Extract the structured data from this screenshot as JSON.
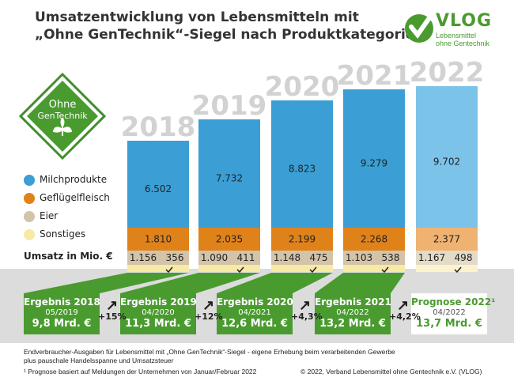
{
  "header": {
    "title_line1": "Umsatzentwicklung von Lebensmitteln mit",
    "title_line2": "„Ohne GenTechnik“-Siegel nach Produktkategorien"
  },
  "brand": {
    "name": "VLOG",
    "subtitle_line1": "Lebensmittel",
    "subtitle_line2": "ohne Gentechnik",
    "badge_line1": "Ohne",
    "badge_line2": "GenTechnik",
    "color": "#4a9b2f"
  },
  "colors": {
    "milch": "#3b9fd5",
    "milch_forecast": "#7cc3ea",
    "gefluegel": "#e0821a",
    "gefluegel_forecast": "#efb271",
    "eier": "#d3c4a9",
    "eier_forecast": "#e4dac8",
    "sonstiges": "#f7e9a6",
    "sonstiges_forecast": "#fbf3cd",
    "green": "#4a9b2f",
    "dark_green": "#2f7d20"
  },
  "legend": {
    "unit_label": "Umsatz in Mio. €",
    "items": [
      {
        "key": "milch",
        "label": "Milchprodukte"
      },
      {
        "key": "gefluegel",
        "label": "Geflügelfleisch"
      },
      {
        "key": "eier",
        "label": "Eier"
      },
      {
        "key": "sonstiges",
        "label": "Sonstiges"
      }
    ]
  },
  "chart_data": {
    "type": "bar",
    "stacked": true,
    "categories": [
      "2018",
      "2019",
      "2020",
      "2021",
      "2022"
    ],
    "forecast_categories": [
      "2022"
    ],
    "series": [
      {
        "name": "Milchprodukte",
        "values": [
          6502,
          7732,
          8823,
          9279,
          9702
        ],
        "labels": [
          "6.502",
          "7.732",
          "8.823",
          "9.279",
          "9.702"
        ]
      },
      {
        "name": "Geflügelfleisch",
        "values": [
          1810,
          2035,
          2199,
          2268,
          2377
        ],
        "labels": [
          "1.810",
          "2.035",
          "2.199",
          "2.268",
          "2.377"
        ]
      },
      {
        "name": "Eier",
        "values": [
          1156,
          1090,
          1148,
          1103,
          1167
        ],
        "labels": [
          "1.156",
          "1.090",
          "1.148",
          "1.103",
          "1.167"
        ]
      },
      {
        "name": "Sonstiges",
        "values": [
          356,
          411,
          475,
          538,
          498
        ],
        "labels": [
          "356",
          "411",
          "475",
          "538",
          "498"
        ]
      }
    ],
    "ylabel": "Umsatz in Mio. €"
  },
  "results": [
    {
      "label": "Ergebnis 2018",
      "date": "05/2019",
      "value": "9,8 Mrd. €"
    },
    {
      "label": "Ergebnis 2019",
      "date": "04/2020",
      "value": "11,3 Mrd. €"
    },
    {
      "label": "Ergebnis 2020",
      "date": "04/2021",
      "value": "12,6 Mrd. €"
    },
    {
      "label": "Ergebnis 2021",
      "date": "04/2022",
      "value": "13,2 Mrd. €"
    },
    {
      "label": "Prognose 2022¹",
      "date": "04/2022",
      "value": "13,7 Mrd. €"
    }
  ],
  "growth": [
    "+15%",
    "+12%",
    "+4,3%",
    "+4,2%"
  ],
  "footer": {
    "note_line1": "Endverbraucher-Ausgaben für Lebensmittel mit „Ohne GenTechnik“-Siegel - eigene Erhebung beim verarbeitenden Gewerbe",
    "note_line2": "plus pauschale Handelsspanne und Umsatzsteuer",
    "footnote": "¹  Prognose basiert auf Meldungen der Unternehmen von Januar/Februar 2022",
    "copyright": "© 2022, Verband Lebensmittel ohne Gentechnik e.V. (VLOG)"
  }
}
